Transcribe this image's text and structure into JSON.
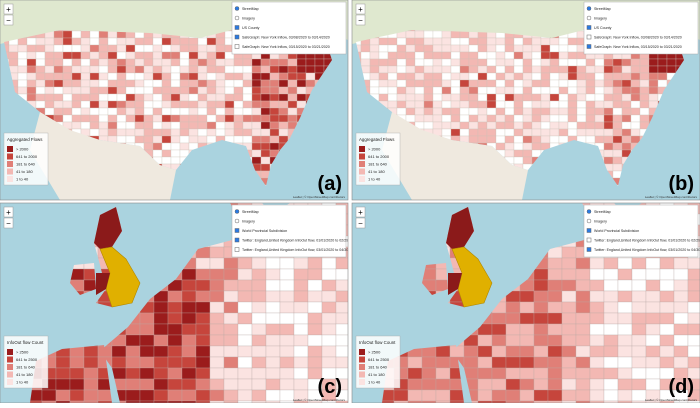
{
  "panels": [
    {
      "label": "(a)",
      "layers": [
        {
          "label": "StreetMap",
          "kind": "radio",
          "on": true
        },
        {
          "label": "Imagery",
          "kind": "radio",
          "on": false
        },
        {
          "label": "US County",
          "kind": "checkbox",
          "on": true
        },
        {
          "label": "SafeGraph: New York Inflow, 03/08/2020 to 03/14/2020",
          "kind": "checkbox",
          "on": true
        },
        {
          "label": "SafeGraph: New York Inflow, 03/15/2020 to 03/21/2020",
          "kind": "checkbox",
          "on": false
        }
      ],
      "legend": {
        "title": "Aggregated Flows",
        "items": [
          "> 2000",
          "641 to 2000",
          "181 to 640",
          "41 to 180",
          "1 to 40"
        ]
      },
      "attribution": "Leaflet | © OpenStreetMap contributors"
    },
    {
      "label": "(b)",
      "layers": [
        {
          "label": "StreetMap",
          "kind": "radio",
          "on": true
        },
        {
          "label": "Imagery",
          "kind": "radio",
          "on": false
        },
        {
          "label": "US County",
          "kind": "checkbox",
          "on": true
        },
        {
          "label": "SafeGraph: New York Inflow, 03/08/2020 to 03/14/2020",
          "kind": "checkbox",
          "on": false
        },
        {
          "label": "SafeGraph: New York Inflow, 03/15/2020 to 03/21/2020",
          "kind": "checkbox",
          "on": true
        }
      ],
      "legend": {
        "title": "Aggregated Flows",
        "items": [
          "> 2000",
          "641 to 2000",
          "181 to 640",
          "41 to 180",
          "1 to 40"
        ]
      },
      "attribution": "Leaflet | © OpenStreetMap contributors"
    },
    {
      "label": "(c)",
      "layers": [
        {
          "label": "StreetMap",
          "kind": "radio",
          "on": true
        },
        {
          "label": "Imagery",
          "kind": "radio",
          "on": false
        },
        {
          "label": "World Provincial Subdivision",
          "kind": "checkbox",
          "on": true
        },
        {
          "label": "Twitter: England,United Kingdom InfoOut flow, 01/01/2020 to 02/29/2020",
          "kind": "checkbox",
          "on": true
        },
        {
          "label": "Twitter: England,United Kingdom InfoOut flow, 03/01/2020 to 04/30/2020",
          "kind": "checkbox",
          "on": false
        }
      ],
      "legend": {
        "title": "InfoOut flow Count",
        "items": [
          "> 2500",
          "641 to 2500",
          "181 to 640",
          "41 to 180",
          "1 to 40"
        ]
      },
      "attribution": "Leaflet | © OpenStreetMap contributors"
    },
    {
      "label": "(d)",
      "layers": [
        {
          "label": "StreetMap",
          "kind": "radio",
          "on": true
        },
        {
          "label": "Imagery",
          "kind": "radio",
          "on": false
        },
        {
          "label": "World Provincial Subdivision",
          "kind": "checkbox",
          "on": true
        },
        {
          "label": "Twitter: England,United Kingdom InfoOut flow, 01/01/2020 to 02/29/2020",
          "kind": "checkbox",
          "on": false
        },
        {
          "label": "Twitter: England,United Kingdom InfoOut flow, 03/01/2020 to 04/30/2020",
          "kind": "checkbox",
          "on": true
        }
      ],
      "legend": {
        "title": "InfoOut flow Count",
        "items": [
          "> 2500",
          "641 to 2500",
          "181 to 640",
          "41 to 180",
          "1 to 40"
        ]
      },
      "attribution": "Leaflet | © OpenStreetMap contributors"
    }
  ],
  "controls": {
    "zoom_in": "+",
    "zoom_out": "−"
  }
}
